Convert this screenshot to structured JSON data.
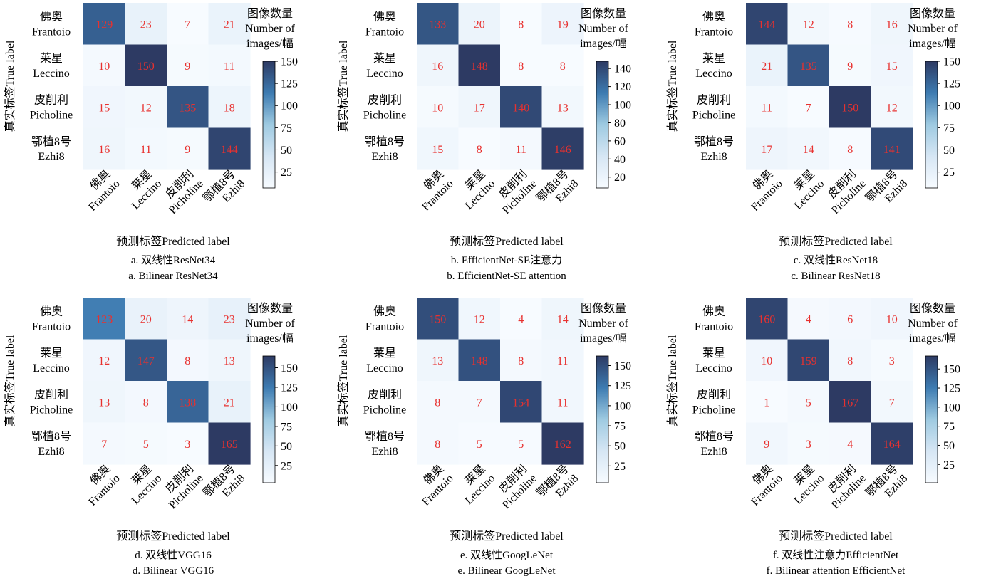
{
  "cbar_title": [
    "图像数量",
    "Number of",
    "images/幅"
  ],
  "ylabel": "真实标签True label",
  "xlabel": "预测标签Predicted label",
  "class_labels": [
    {
      "cn": "佛奥",
      "en": "Frantoio"
    },
    {
      "cn": "莱星",
      "en": "Leccino"
    },
    {
      "cn": "皮削利",
      "en": "Picholine"
    },
    {
      "cn": "鄂植8号",
      "en": "Ezhi8"
    }
  ],
  "colors": {
    "cell_text": "#e8312f",
    "cmap_low": "#f7fbff",
    "cmap_high": "#2d3a63"
  },
  "chart_data": [
    {
      "type": "heatmap",
      "caption_cn": "a. 双线性ResNet34",
      "caption_en": "a. Bilinear ResNet34",
      "matrix": [
        [
          129,
          23,
          7,
          21
        ],
        [
          10,
          150,
          9,
          11
        ],
        [
          15,
          12,
          135,
          18
        ],
        [
          16,
          11,
          9,
          144
        ]
      ],
      "vmin": 7,
      "vmax": 150,
      "cbar_ticks": [
        25,
        50,
        75,
        100,
        125,
        150
      ]
    },
    {
      "type": "heatmap",
      "caption_cn": "b. EfficientNet-SE注意力",
      "caption_en": "b. EfficientNet-SE attention",
      "matrix": [
        [
          133,
          20,
          8,
          19
        ],
        [
          16,
          148,
          8,
          8
        ],
        [
          10,
          17,
          140,
          13
        ],
        [
          15,
          8,
          11,
          146
        ]
      ],
      "vmin": 8,
      "vmax": 148,
      "cbar_ticks": [
        20,
        40,
        60,
        80,
        100,
        120,
        140
      ]
    },
    {
      "type": "heatmap",
      "caption_cn": "c. 双线性ResNet18",
      "caption_en": "c. Bilinear ResNet18",
      "matrix": [
        [
          144,
          12,
          8,
          16
        ],
        [
          21,
          135,
          9,
          15
        ],
        [
          11,
          7,
          150,
          12
        ],
        [
          17,
          14,
          8,
          141
        ]
      ],
      "vmin": 7,
      "vmax": 150,
      "cbar_ticks": [
        25,
        50,
        75,
        100,
        125,
        150
      ]
    },
    {
      "type": "heatmap",
      "caption_cn": "d. 双线性VGG16",
      "caption_en": "d. Bilinear VGG16",
      "matrix": [
        [
          123,
          20,
          14,
          23
        ],
        [
          12,
          147,
          8,
          13
        ],
        [
          13,
          8,
          138,
          21
        ],
        [
          7,
          5,
          3,
          165
        ]
      ],
      "vmin": 3,
      "vmax": 165,
      "cbar_ticks": [
        25,
        50,
        75,
        100,
        125,
        150
      ]
    },
    {
      "type": "heatmap",
      "caption_cn": "e. 双线性GoogLeNet",
      "caption_en": "e. Bilinear GoogLeNet",
      "matrix": [
        [
          150,
          12,
          4,
          14
        ],
        [
          13,
          148,
          8,
          11
        ],
        [
          8,
          7,
          154,
          11
        ],
        [
          8,
          5,
          5,
          162
        ]
      ],
      "vmin": 4,
      "vmax": 162,
      "cbar_ticks": [
        25,
        50,
        75,
        100,
        125,
        150
      ]
    },
    {
      "type": "heatmap",
      "caption_cn": "f. 双线性注意力EfficientNet",
      "caption_en": "f. Bilinear attention EfficientNet",
      "matrix": [
        [
          160,
          4,
          6,
          10
        ],
        [
          10,
          159,
          8,
          3
        ],
        [
          1,
          5,
          167,
          7
        ],
        [
          9,
          3,
          4,
          164
        ]
      ],
      "vmin": 1,
      "vmax": 167,
      "cbar_ticks": [
        25,
        50,
        75,
        100,
        125,
        150
      ]
    }
  ]
}
